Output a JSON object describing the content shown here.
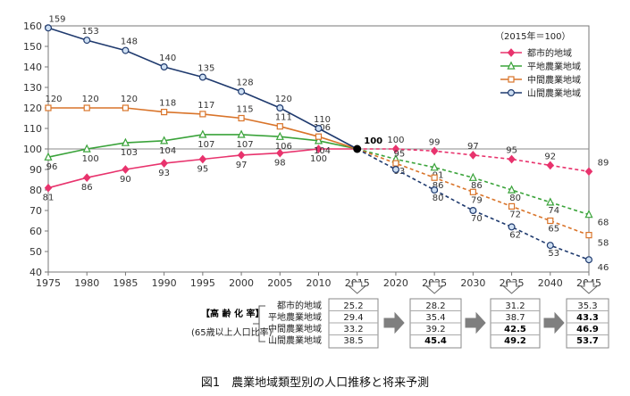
{
  "chart_data": {
    "type": "line",
    "title": "",
    "caption": "図1　農業地域類型別の人口推移と将来予測",
    "legend_title": "（2015年＝100）",
    "legend_position": "top-right",
    "x": [
      "1975",
      "1980",
      "1985",
      "1990",
      "1995",
      "2000",
      "2005",
      "2010",
      "2015",
      "2020",
      "2025",
      "2030",
      "2035",
      "2040",
      "2045"
    ],
    "ylim": [
      40,
      160
    ],
    "yticks": [
      40,
      50,
      60,
      70,
      80,
      90,
      100,
      110,
      120,
      130,
      140,
      150,
      160
    ],
    "grid": false,
    "reference_line": 100,
    "series": [
      {
        "name": "都市的地域",
        "color": "#e8336d",
        "marker": "diamond",
        "values": [
          81,
          86,
          90,
          93,
          95,
          97,
          98,
          100,
          100,
          100,
          99,
          97,
          95,
          92,
          89
        ],
        "labels": [
          "81",
          "86",
          "90",
          "93",
          "95",
          "97",
          "98",
          "100",
          "100",
          "100",
          "99",
          "97",
          "95",
          "92",
          "89"
        ]
      },
      {
        "name": "平地農業地域",
        "color": "#3aa33a",
        "marker": "triangle",
        "values": [
          96,
          100,
          103,
          104,
          107,
          107,
          106,
          104,
          100,
          95,
          91,
          86,
          80,
          74,
          68
        ],
        "labels": [
          "96",
          "100",
          "103",
          "104",
          "107",
          "107",
          "106",
          "104",
          "",
          "95",
          "91",
          "86",
          "80",
          "74",
          "68"
        ]
      },
      {
        "name": "中間農業地域",
        "color": "#d9742a",
        "marker": "square",
        "values": [
          120,
          120,
          120,
          118,
          117,
          115,
          111,
          106,
          100,
          93,
          86,
          79,
          72,
          65,
          58
        ],
        "labels": [
          "120",
          "120",
          "120",
          "118",
          "117",
          "115",
          "111",
          "106",
          "",
          "93",
          "86",
          "79",
          "72",
          "65",
          "58"
        ]
      },
      {
        "name": "山間農業地域",
        "color": "#1f3a6e",
        "marker": "circle",
        "values": [
          159,
          153,
          148,
          140,
          135,
          128,
          120,
          110,
          100,
          90,
          80,
          70,
          62,
          53,
          46
        ],
        "labels": [
          "159",
          "153",
          "148",
          "140",
          "135",
          "128",
          "120",
          "110",
          "",
          "",
          "80",
          "70",
          "62",
          "53",
          "46"
        ]
      }
    ],
    "center_label": "100"
  },
  "aging_table": {
    "title": "【高 齢 化 率】",
    "subtitle": "(65歳以上人口比率)",
    "rows": [
      "都市的地域",
      "平地農業地域",
      "中間農業地域",
      "山間農業地域"
    ],
    "years": [
      "2015",
      "2025",
      "2035",
      "2045"
    ],
    "values": [
      [
        "25.2",
        "29.4",
        "33.2",
        "38.5"
      ],
      [
        "28.2",
        "35.4",
        "39.2",
        "45.4"
      ],
      [
        "31.2",
        "38.7",
        "42.5",
        "49.2"
      ],
      [
        "35.3",
        "43.3",
        "46.9",
        "53.7"
      ]
    ],
    "bold": [
      [
        false,
        false,
        false,
        false
      ],
      [
        false,
        false,
        false,
        true
      ],
      [
        false,
        false,
        true,
        true
      ],
      [
        false,
        true,
        true,
        true
      ]
    ]
  }
}
